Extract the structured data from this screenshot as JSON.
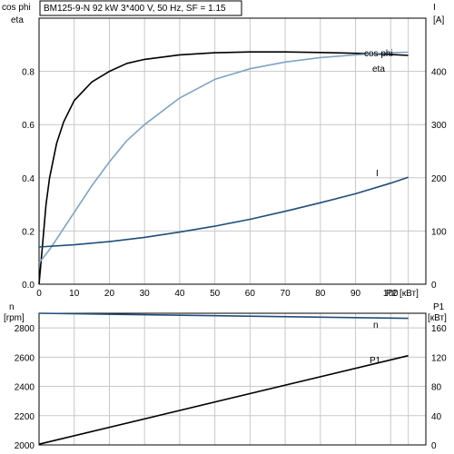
{
  "title": "BM125-9-N   92 kW   3*400 V, 50 Hz, SF = 1.15",
  "chart_data": [
    {
      "type": "line",
      "xlabel": "P2 [кВт]",
      "ylabel_left": "cos phi\neta",
      "ylabel_right": "I\n[A]",
      "xlim": [
        0,
        110
      ],
      "ylim_left": [
        0,
        1.0
      ],
      "ylim_right": [
        0,
        500
      ],
      "x_ticks": [
        0,
        10,
        20,
        30,
        40,
        50,
        60,
        70,
        80,
        90,
        100
      ],
      "y_ticks_left": [
        "0.0",
        "0.2",
        "0.4",
        "0.6",
        "0.8"
      ],
      "y_ticks_right": [
        "0",
        "100",
        "200",
        "300",
        "400"
      ],
      "grid": true,
      "series": [
        {
          "name": "eta",
          "axis": "left",
          "color": "#000000",
          "x": [
            0,
            1,
            2,
            3,
            5,
            7,
            10,
            15,
            20,
            25,
            30,
            40,
            50,
            60,
            70,
            80,
            90,
            100,
            105
          ],
          "y": [
            0.0,
            0.15,
            0.3,
            0.4,
            0.53,
            0.61,
            0.69,
            0.76,
            0.8,
            0.83,
            0.845,
            0.862,
            0.87,
            0.873,
            0.873,
            0.871,
            0.868,
            0.863,
            0.86
          ]
        },
        {
          "name": "cos phi",
          "axis": "left",
          "color": "#7ea3c5",
          "x": [
            0,
            3,
            5,
            10,
            15,
            20,
            25,
            30,
            40,
            50,
            60,
            70,
            80,
            90,
            100,
            105
          ],
          "y": [
            0.08,
            0.13,
            0.17,
            0.27,
            0.37,
            0.46,
            0.54,
            0.6,
            0.7,
            0.77,
            0.81,
            0.835,
            0.852,
            0.862,
            0.87,
            0.872
          ]
        },
        {
          "name": "I",
          "axis": "right",
          "color": "#1f4e79",
          "x": [
            0,
            10,
            20,
            30,
            40,
            50,
            60,
            70,
            80,
            90,
            100,
            105
          ],
          "y": [
            70,
            74,
            80,
            88,
            98,
            109,
            122,
            137,
            153,
            170,
            190,
            201
          ]
        }
      ]
    },
    {
      "type": "line",
      "ylabel_left": "n\n[rpm]",
      "ylabel_right": "P1\n[кВт]",
      "xlim": [
        0,
        110
      ],
      "ylim_left": [
        2000,
        2900
      ],
      "ylim_right": [
        0,
        180
      ],
      "y_ticks_left": [
        "2000",
        "2200",
        "2400",
        "2600",
        "2800"
      ],
      "y_ticks_right": [
        "0",
        "40",
        "80",
        "120",
        "160"
      ],
      "grid": true,
      "series": [
        {
          "name": "n",
          "axis": "left",
          "color": "#1f4e79",
          "x": [
            0,
            105
          ],
          "y": [
            2900,
            2865
          ]
        },
        {
          "name": "P1",
          "axis": "right",
          "color": "#000000",
          "x": [
            0,
            105
          ],
          "y": [
            1,
            122
          ]
        }
      ]
    }
  ]
}
